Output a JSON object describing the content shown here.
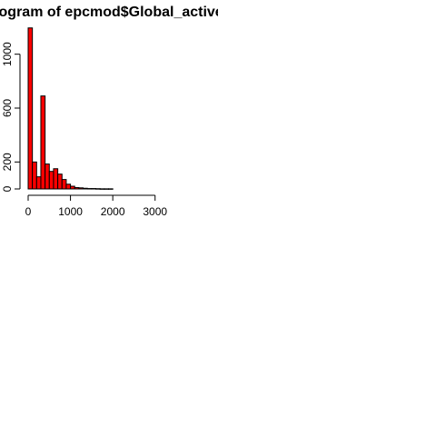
{
  "chart_data": {
    "type": "bar",
    "title": "Histogram of epcmod$Global_active_power",
    "xlabel": "",
    "ylabel": "",
    "bin_width": 100,
    "bin_start": 0,
    "values": [
      1195,
      200,
      90,
      690,
      185,
      130,
      150,
      110,
      70,
      35,
      20,
      10,
      8,
      5,
      3,
      3,
      2,
      1,
      1,
      1
    ],
    "xlim": [
      0,
      3800
    ],
    "ylim": [
      0,
      1200
    ],
    "xticks": [
      "0",
      "1000",
      "2000",
      "3000"
    ],
    "yticks": [
      "0",
      "200",
      "600",
      "1000"
    ],
    "bar_color": "#ff0000",
    "grid": false
  }
}
